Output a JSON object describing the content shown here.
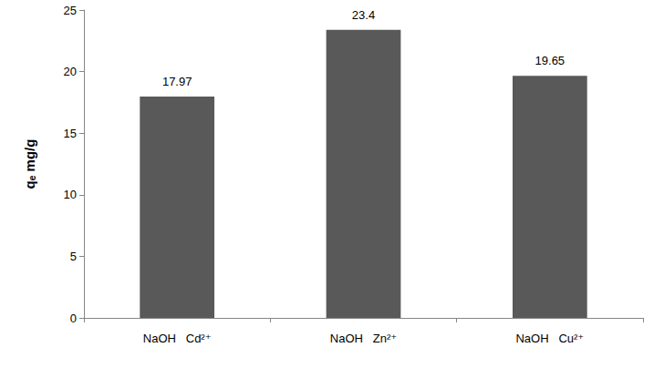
{
  "chart_data": {
    "type": "bar",
    "y_label": "qₑ mg/g",
    "categories": [
      "NaOH   Cd²⁺",
      "NaOH   Zn²⁺",
      "NaOH   Cu²⁺"
    ],
    "values": [
      17.97,
      23.4,
      19.65
    ],
    "color": "#595959",
    "ylim": [
      0,
      25
    ],
    "yticks": [
      0,
      5,
      10,
      15,
      20,
      25
    ],
    "grid": false,
    "data_labels": true
  }
}
